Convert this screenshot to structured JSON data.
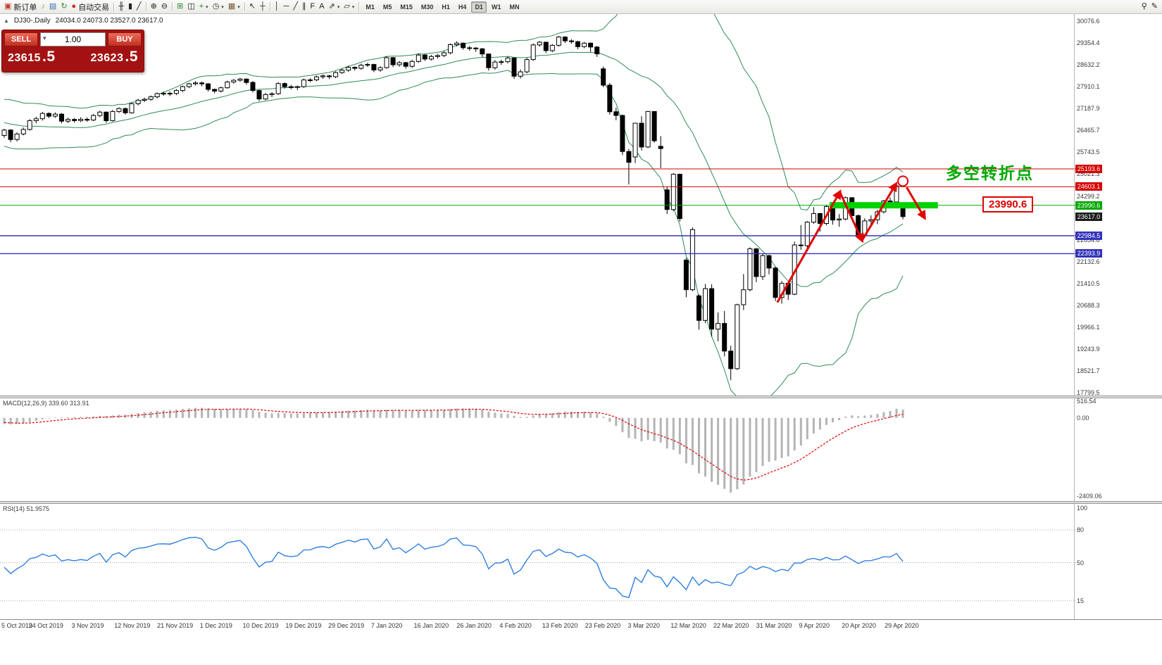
{
  "toolbar": {
    "groups": [
      [
        {
          "name": "new-order-button",
          "glyph": "▣",
          "glyph_color": "#c03b2f",
          "label": "新订单"
        },
        {
          "name": "alerts-icon",
          "glyph": "♪",
          "glyph_color": "#c79016"
        },
        {
          "name": "profiles-icon",
          "glyph": "▤",
          "glyph_color": "#3a6ea8"
        },
        {
          "name": "refresh-icon",
          "glyph": "↻",
          "glyph_color": "#2d8a33"
        },
        {
          "name": "auto-trading-button",
          "glyph": "●",
          "glyph_color": "#cf2b20",
          "label": "自动交易"
        }
      ],
      [
        {
          "name": "bar-chart-icon",
          "glyph": "╫"
        },
        {
          "name": "candlestick-chart-icon",
          "glyph": "▮"
        },
        {
          "name": "line-chart-icon",
          "glyph": "╱"
        }
      ],
      [
        {
          "name": "zoom-in-icon",
          "glyph": "⊕"
        },
        {
          "name": "zoom-out-icon",
          "glyph": "⊖"
        }
      ],
      [
        {
          "name": "indicators-icon",
          "glyph": "⊞",
          "glyph_color": "#2d8a33"
        },
        {
          "name": "tile-windows-icon",
          "glyph": "◫"
        },
        {
          "name": "add-indicator-button",
          "glyph": "+",
          "glyph_color": "#1d8a1d",
          "caret": true
        },
        {
          "name": "period-selector-button",
          "glyph": "◷",
          "caret": true
        },
        {
          "name": "template-button",
          "glyph": "▦",
          "glyph_color": "#7a5c2e",
          "caret": true
        }
      ],
      [
        {
          "name": "cursor-icon",
          "glyph": "↖"
        },
        {
          "name": "crosshair-icon",
          "glyph": "┼"
        }
      ],
      [
        {
          "name": "vertical-line-icon",
          "glyph": "│"
        },
        {
          "name": "horizontal-line-icon",
          "glyph": "─"
        },
        {
          "name": "trendline-icon",
          "glyph": "╱"
        },
        {
          "name": "equidistant-channel-icon",
          "glyph": "∥"
        },
        {
          "name": "fibonacci-icon",
          "glyph": "F"
        },
        {
          "name": "text-tool-icon",
          "glyph": "A"
        },
        {
          "name": "arrows-tool-icon",
          "glyph": "⇗",
          "caret": true
        },
        {
          "name": "shapes-tool-icon",
          "glyph": "▱",
          "caret": true
        }
      ]
    ],
    "timeframes": [
      "M1",
      "M5",
      "M15",
      "M30",
      "H1",
      "H4",
      "D1",
      "W1",
      "MN"
    ],
    "active_timeframe": "D1",
    "right_icons": [
      {
        "name": "search-icon",
        "glyph": "⚲"
      },
      {
        "name": "edit-icon",
        "glyph": "✎"
      }
    ]
  },
  "chart": {
    "collapse_glyph": "▲",
    "title": "DJ30-,Daily",
    "ohlc": "24034.0 24073.0 23527.0 23617.0"
  },
  "trade_panel": {
    "sell_label": "SELL",
    "buy_label": "BUY",
    "volume": "1.00",
    "volume_caret": "▾",
    "sell_price": "23615",
    "sell_frac": ".5",
    "buy_price": "23623",
    "buy_frac": ".5"
  },
  "annotations": {
    "turning_point": "多空转折点",
    "level_label": "23990.6"
  },
  "price_axis": {
    "labels": [
      "30076.6",
      "29354.4",
      "28632.2",
      "27910.1",
      "27187.9",
      "26465.7",
      "25743.5",
      "25021.3",
      "24299.2",
      "23577.0",
      "22854.8",
      "22132.6",
      "21410.5",
      "20688.3",
      "19966.1",
      "19243.9",
      "18521.7",
      "17799.5"
    ],
    "tags": [
      {
        "text": "25193.6",
        "price": 25193.6,
        "bg": "#d40000"
      },
      {
        "text": "24603.1",
        "price": 24603.1,
        "bg": "#d40000"
      },
      {
        "text": "23990.6",
        "price": 23990.6,
        "bg": "#00a800"
      },
      {
        "text": "23617.0",
        "price": 23617.0,
        "bg": "#1a1a1a"
      },
      {
        "text": "22984.5",
        "price": 22984.5,
        "bg": "#3333bb"
      },
      {
        "text": "22393.9",
        "price": 22393.9,
        "bg": "#3333bb"
      }
    ]
  },
  "macd": {
    "label": "MACD(12,26,9) 339.60 313.91",
    "axis": [
      "516.54",
      "0.00",
      "-2409.06"
    ]
  },
  "rsi": {
    "label": "RSI(14) 51.9575",
    "axis": [
      "100",
      "80",
      "50",
      "15"
    ]
  },
  "time_axis": {
    "labels": [
      "5 Oct 2019",
      "24 Oct 2019",
      "3 Nov 2019",
      "12 Nov 2019",
      "21 Nov 2019",
      "1 Dec 2019",
      "10 Dec 2019",
      "19 Dec 2019",
      "29 Dec 2019",
      "7 Jan 2020",
      "16 Jan 2020",
      "26 Jan 2020",
      "4 Feb 2020",
      "13 Feb 2020",
      "23 Feb 2020",
      "3 Mar 2020",
      "12 Mar 2020",
      "22 Mar 2020",
      "31 Mar 2020",
      "9 Apr 2020",
      "20 Apr 2020",
      "29 Apr 2020"
    ]
  },
  "style": {
    "bollinger": "#2E8B57",
    "candle_up": "#ffffff",
    "candle_down": "#000000",
    "candle_border": "#000000",
    "macd_bar": "#b4b4b4",
    "macd_signal": "#e00000",
    "rsi_line": "#2277dd",
    "grid_dotted": "#aaaaaa",
    "zone_green": "#00d300",
    "alert_red": "#e00000"
  },
  "chart_data": {
    "type": "candlestick",
    "symbol": "DJ30-",
    "period": "Daily",
    "ylim": [
      17799.5,
      30076.6
    ],
    "indicators": {
      "bollinger": {
        "period": 20,
        "deviation": 2
      },
      "macd": {
        "fast": 12,
        "slow": 26,
        "signal": 9,
        "current_main": 339.6,
        "current_signal": 313.91
      },
      "rsi": {
        "period": 14,
        "current": 51.9575
      }
    },
    "macd_scale": {
      "max": 516.54,
      "min": -2409.06
    },
    "rsi_levels": [
      80,
      50,
      15
    ],
    "hlines": [
      {
        "price": 25193.6,
        "color": "#d40000",
        "width": 1
      },
      {
        "price": 24603.1,
        "color": "#d40000",
        "width": 1
      },
      {
        "price": 23990.6,
        "color": "#00a800",
        "width": 1
      },
      {
        "price": 22984.5,
        "color": "#3333bb",
        "width": 1.4
      },
      {
        "price": 22393.9,
        "color": "#3333bb",
        "width": 1.4
      }
    ],
    "zone": {
      "price": 23990.6,
      "from_idx": 129.5,
      "to_idx": 146.5,
      "thickness": 9
    },
    "trend_arrows": [
      {
        "from": [
          121.3,
          20780
        ],
        "to": [
          131.1,
          24430
        ]
      },
      {
        "from": [
          131.1,
          24430
        ],
        "to": [
          134.6,
          22830
        ]
      },
      {
        "from": [
          134.6,
          22830
        ],
        "to": [
          139.9,
          24690
        ]
      },
      {
        "from": [
          141.6,
          24580
        ],
        "to": [
          144.4,
          23580
        ]
      }
    ],
    "highlight_circle": {
      "at": [
        141,
        24790
      ],
      "r": 7
    },
    "history_closes": [
      26950,
      27000,
      27080,
      27110,
      26870,
      26900,
      27150,
      27220,
      27080,
      26820,
      26890,
      27010,
      26970,
      26620,
      26350,
      26100,
      26180,
      25950,
      26350,
      26250
    ],
    "candles": [
      [
        26300,
        26520,
        26220,
        26478
      ],
      [
        26478,
        26510,
        26080,
        26164
      ],
      [
        26164,
        26400,
        26100,
        26346
      ],
      [
        26346,
        26560,
        26300,
        26497
      ],
      [
        26497,
        26840,
        26460,
        26787
      ],
      [
        26787,
        26920,
        26700,
        26850
      ],
      [
        26850,
        27080,
        26790,
        27025
      ],
      [
        27025,
        27060,
        26870,
        26935
      ],
      [
        26935,
        27060,
        26880,
        27002
      ],
      [
        27002,
        27040,
        26700,
        26770
      ],
      [
        26770,
        26890,
        26710,
        26828
      ],
      [
        26828,
        26870,
        26720,
        26788
      ],
      [
        26788,
        26900,
        26740,
        26833
      ],
      [
        26833,
        26890,
        26750,
        26806
      ],
      [
        26806,
        27010,
        26770,
        26958
      ],
      [
        26958,
        27120,
        26900,
        27071
      ],
      [
        27071,
        27090,
        26720,
        26788
      ],
      [
        26788,
        27140,
        26760,
        27091
      ],
      [
        27091,
        27230,
        27040,
        27186
      ],
      [
        27186,
        27220,
        26990,
        27046
      ],
      [
        27046,
        27390,
        27020,
        27347
      ],
      [
        27347,
        27510,
        27290,
        27463
      ],
      [
        27463,
        27550,
        27400,
        27493
      ],
      [
        27493,
        27620,
        27440,
        27575
      ],
      [
        27575,
        27720,
        27520,
        27681
      ],
      [
        27681,
        27740,
        27610,
        27691
      ],
      [
        27691,
        27750,
        27600,
        27684
      ],
      [
        27684,
        27830,
        27630,
        27783
      ],
      [
        27783,
        27950,
        27730,
        27911
      ],
      [
        27911,
        28040,
        27860,
        28005
      ],
      [
        28005,
        28090,
        27950,
        28036
      ],
      [
        28036,
        28080,
        27920,
        28004
      ],
      [
        28004,
        28030,
        27750,
        27821
      ],
      [
        27821,
        27850,
        27690,
        27766
      ],
      [
        27766,
        27910,
        27720,
        27875
      ],
      [
        27875,
        28110,
        27840,
        28066
      ],
      [
        28066,
        28160,
        28010,
        28121
      ],
      [
        28121,
        28200,
        28070,
        28164
      ],
      [
        28164,
        28180,
        27980,
        28051
      ],
      [
        28051,
        28100,
        27720,
        27783
      ],
      [
        27783,
        27810,
        27430,
        27503
      ],
      [
        27503,
        27700,
        27460,
        27650
      ],
      [
        27650,
        27730,
        27560,
        27677
      ],
      [
        27677,
        28060,
        27640,
        28015
      ],
      [
        28015,
        28050,
        27850,
        27910
      ],
      [
        27910,
        27970,
        27820,
        27882
      ],
      [
        27882,
        27950,
        27800,
        27911
      ],
      [
        27911,
        28180,
        27870,
        28132
      ],
      [
        28132,
        28190,
        28060,
        28135
      ],
      [
        28135,
        28280,
        28090,
        28236
      ],
      [
        28236,
        28310,
        28170,
        28267
      ],
      [
        28267,
        28300,
        28160,
        28239
      ],
      [
        28239,
        28420,
        28190,
        28377
      ],
      [
        28377,
        28510,
        28330,
        28455
      ],
      [
        28455,
        28600,
        28400,
        28552
      ],
      [
        28552,
        28580,
        28440,
        28516
      ],
      [
        28516,
        28670,
        28470,
        28621
      ],
      [
        28621,
        28700,
        28560,
        28645
      ],
      [
        28645,
        28670,
        28390,
        28462
      ],
      [
        28462,
        28590,
        28400,
        28538
      ],
      [
        28538,
        28920,
        28500,
        28869
      ],
      [
        28869,
        28890,
        28560,
        28635
      ],
      [
        28635,
        28760,
        28570,
        28704
      ],
      [
        28704,
        28730,
        28500,
        28584
      ],
      [
        28584,
        28800,
        28530,
        28745
      ],
      [
        28745,
        29010,
        28700,
        28957
      ],
      [
        28957,
        28990,
        28760,
        28824
      ],
      [
        28824,
        28960,
        28770,
        28907
      ],
      [
        28907,
        28990,
        28840,
        28939
      ],
      [
        28939,
        29080,
        28890,
        29030
      ],
      [
        29030,
        29340,
        28980,
        29298
      ],
      [
        29298,
        29410,
        29240,
        29348
      ],
      [
        29348,
        29370,
        29130,
        29196
      ],
      [
        29196,
        29250,
        29100,
        29186
      ],
      [
        29186,
        29220,
        29060,
        29160
      ],
      [
        29160,
        29190,
        28900,
        28990
      ],
      [
        28990,
        29010,
        28440,
        28536
      ],
      [
        28536,
        28790,
        28470,
        28723
      ],
      [
        28723,
        28800,
        28630,
        28735
      ],
      [
        28735,
        28920,
        28680,
        28859
      ],
      [
        28859,
        28880,
        28170,
        28256
      ],
      [
        28256,
        28480,
        28180,
        28400
      ],
      [
        28400,
        28870,
        28350,
        28808
      ],
      [
        28808,
        29340,
        28760,
        29291
      ],
      [
        29291,
        29420,
        29230,
        29380
      ],
      [
        29380,
        29400,
        29020,
        29103
      ],
      [
        29103,
        29320,
        29050,
        29277
      ],
      [
        29277,
        29590,
        29230,
        29551
      ],
      [
        29551,
        29580,
        29350,
        29424
      ],
      [
        29424,
        29480,
        29330,
        29398
      ],
      [
        29398,
        29430,
        29150,
        29233
      ],
      [
        29233,
        29390,
        29180,
        29348
      ],
      [
        29348,
        29370,
        29060,
        29220
      ],
      [
        29220,
        29250,
        28890,
        28992
      ],
      [
        28500,
        28580,
        27890,
        27961
      ],
      [
        27961,
        28030,
        26990,
        27081
      ],
      [
        27081,
        27210,
        26800,
        26958
      ],
      [
        26958,
        26990,
        25650,
        25767
      ],
      [
        25767,
        25850,
        24680,
        25409
      ],
      [
        25590,
        26710,
        25390,
        26703
      ],
      [
        26703,
        26930,
        25800,
        25917
      ],
      [
        25917,
        27110,
        25880,
        27091
      ],
      [
        27091,
        27100,
        26060,
        26121
      ],
      [
        25940,
        26280,
        25220,
        25865
      ],
      [
        24500,
        24600,
        23700,
        23851
      ],
      [
        23851,
        25050,
        23800,
        25018
      ],
      [
        25018,
        25030,
        23450,
        23553
      ],
      [
        22180,
        22250,
        20950,
        21200
      ],
      [
        21200,
        23260,
        21150,
        23186
      ],
      [
        21000,
        21050,
        19880,
        20188
      ],
      [
        20188,
        21390,
        20100,
        21237
      ],
      [
        21237,
        21380,
        19650,
        19899
      ],
      [
        19899,
        20450,
        19500,
        20087
      ],
      [
        20087,
        20500,
        19000,
        19174
      ],
      [
        19174,
        19350,
        18210,
        18592
      ],
      [
        18592,
        20740,
        18550,
        20705
      ],
      [
        20705,
        21720,
        20530,
        21201
      ],
      [
        21201,
        22600,
        21150,
        22552
      ],
      [
        22552,
        22580,
        21450,
        21637
      ],
      [
        21637,
        22380,
        21520,
        22327
      ],
      [
        22327,
        22360,
        21710,
        21917
      ],
      [
        21917,
        21960,
        20830,
        20944
      ],
      [
        20944,
        21490,
        20740,
        21413
      ],
      [
        21413,
        21450,
        20860,
        21053
      ],
      [
        21053,
        22790,
        21020,
        22680
      ],
      [
        22680,
        23340,
        22520,
        22654
      ],
      [
        22654,
        23470,
        22590,
        23434
      ],
      [
        23434,
        23930,
        23380,
        23719
      ],
      [
        23719,
        23740,
        23120,
        23391
      ],
      [
        23391,
        24010,
        23330,
        23950
      ],
      [
        23950,
        23980,
        23350,
        23504
      ],
      [
        23504,
        23700,
        23280,
        23537
      ],
      [
        23537,
        24280,
        23490,
        24242
      ],
      [
        24242,
        24260,
        23560,
        23650
      ],
      [
        23650,
        23690,
        22940,
        23018
      ],
      [
        23018,
        23560,
        22980,
        23476
      ],
      [
        23476,
        23660,
        23290,
        23515
      ],
      [
        23515,
        23840,
        23370,
        23775
      ],
      [
        23775,
        24170,
        23720,
        24134
      ],
      [
        24134,
        24250,
        23890,
        24102
      ],
      [
        24102,
        24760,
        24050,
        24634
      ],
      [
        24034,
        24073,
        23527,
        23617
      ]
    ]
  }
}
